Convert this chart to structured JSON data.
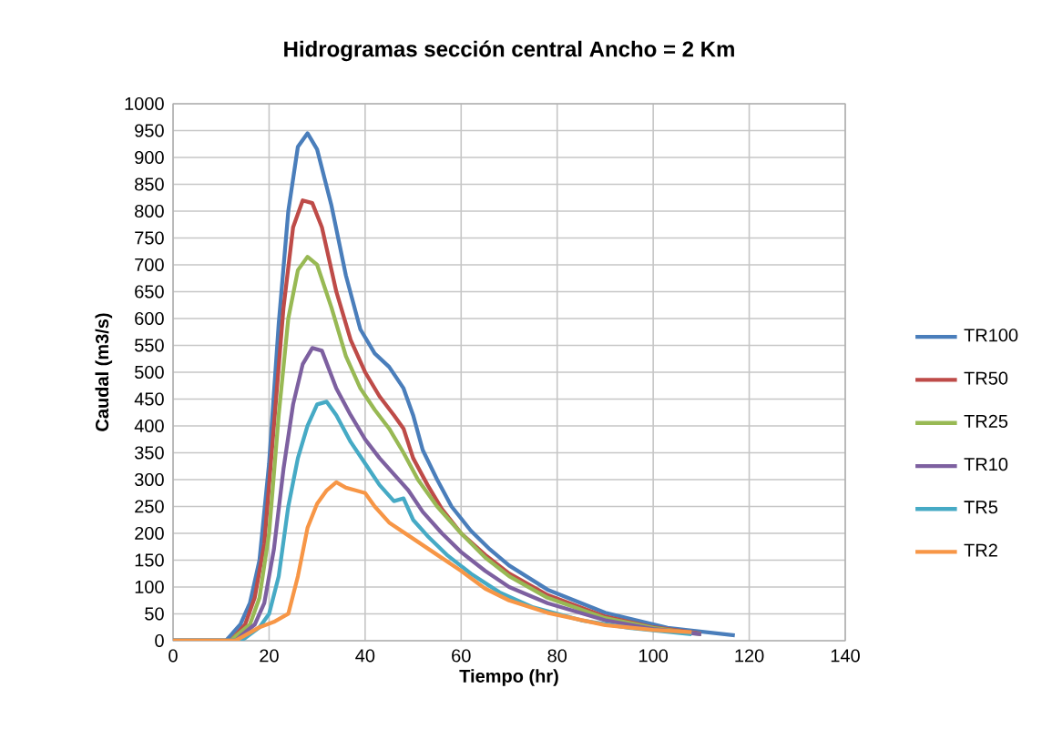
{
  "chart_data": {
    "type": "line",
    "title": "Hidrogramas sección central Ancho = 2 Km",
    "xlabel": "Tiempo (hr)",
    "ylabel": "Caudal (m3/s)",
    "xlim": [
      0,
      140
    ],
    "xticks": [
      0,
      20,
      40,
      60,
      80,
      100,
      120,
      140
    ],
    "ylim": [
      0,
      1000
    ],
    "yticks": [
      0,
      50,
      100,
      150,
      200,
      250,
      300,
      350,
      400,
      450,
      500,
      550,
      600,
      650,
      700,
      750,
      800,
      850,
      900,
      950,
      1000
    ],
    "grid": true,
    "legend": "right",
    "marker": "none",
    "line_style": "solid",
    "series": [
      {
        "name": "TR100",
        "color": "#4a7ebb",
        "x": [
          0,
          11,
          12,
          14,
          16,
          18,
          20,
          22,
          24,
          26,
          28,
          30,
          33,
          36,
          39,
          42,
          45,
          48,
          50,
          52,
          55,
          58,
          62,
          66,
          70,
          78,
          90,
          103,
          117
        ],
        "values": [
          0,
          0,
          10,
          30,
          70,
          150,
          330,
          590,
          800,
          920,
          945,
          915,
          810,
          680,
          580,
          535,
          510,
          470,
          420,
          355,
          300,
          250,
          205,
          170,
          140,
          95,
          52,
          24,
          10
        ]
      },
      {
        "name": "TR50",
        "color": "#be4b48",
        "x": [
          0,
          12,
          13,
          15,
          17,
          19,
          21,
          23,
          25,
          27,
          29,
          31,
          34,
          37,
          40,
          43,
          46,
          48,
          50,
          53,
          56,
          60,
          65,
          70,
          78,
          90,
          100,
          110
        ],
        "values": [
          0,
          0,
          10,
          30,
          80,
          180,
          400,
          620,
          770,
          820,
          815,
          770,
          650,
          560,
          500,
          455,
          420,
          395,
          340,
          290,
          245,
          200,
          160,
          125,
          85,
          45,
          25,
          13
        ]
      },
      {
        "name": "TR25",
        "color": "#98b954",
        "x": [
          0,
          12,
          13,
          16,
          18,
          20,
          22,
          24,
          26,
          28,
          30,
          33,
          36,
          39,
          42,
          45,
          48,
          51,
          55,
          60,
          65,
          70,
          78,
          90,
          100,
          110
        ],
        "values": [
          0,
          0,
          8,
          30,
          80,
          200,
          420,
          600,
          690,
          715,
          700,
          620,
          530,
          470,
          430,
          395,
          350,
          300,
          250,
          200,
          155,
          120,
          80,
          42,
          24,
          12
        ]
      },
      {
        "name": "TR10",
        "color": "#7d60a0",
        "x": [
          0,
          13,
          14,
          17,
          19,
          21,
          23,
          25,
          27,
          29,
          31,
          34,
          37,
          40,
          43,
          46,
          49,
          52,
          56,
          60,
          65,
          70,
          78,
          90,
          100,
          110
        ],
        "values": [
          0,
          0,
          8,
          30,
          70,
          170,
          320,
          440,
          515,
          545,
          540,
          470,
          420,
          375,
          340,
          310,
          280,
          240,
          200,
          165,
          130,
          100,
          70,
          38,
          22,
          12
        ]
      },
      {
        "name": "TR5",
        "color": "#46aac5",
        "x": [
          0,
          14,
          15,
          18,
          20,
          22,
          24,
          26,
          28,
          30,
          32,
          34,
          37,
          40,
          43,
          46,
          48,
          50,
          53,
          57,
          62,
          68,
          75,
          85,
          95,
          108
        ],
        "values": [
          0,
          0,
          5,
          25,
          50,
          120,
          250,
          340,
          400,
          440,
          445,
          420,
          370,
          330,
          290,
          260,
          265,
          225,
          195,
          160,
          125,
          90,
          62,
          38,
          24,
          12
        ]
      },
      {
        "name": "TR2",
        "color": "#f79646",
        "x": [
          0,
          13,
          15,
          18,
          21,
          24,
          26,
          28,
          30,
          32,
          34,
          36,
          38,
          40,
          42,
          45,
          50,
          56,
          60,
          65,
          70,
          78,
          90,
          100,
          108
        ],
        "values": [
          0,
          0,
          10,
          25,
          35,
          50,
          120,
          210,
          255,
          280,
          295,
          285,
          280,
          275,
          250,
          220,
          190,
          154,
          130,
          97,
          75,
          52,
          29,
          20,
          16
        ]
      }
    ]
  }
}
